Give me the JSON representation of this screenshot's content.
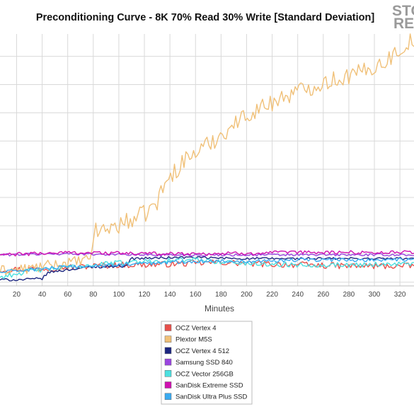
{
  "chart_data": {
    "type": "line",
    "title": "Preconditioning Curve - 8K 70% Read 30% Write [Standard Deviation]",
    "xlabel": "Minutes",
    "ylabel": "",
    "x_ticks": [
      20,
      40,
      60,
      80,
      100,
      120,
      140,
      160,
      180,
      200,
      220,
      240,
      260,
      280,
      300,
      320
    ],
    "xlim": [
      7,
      331
    ],
    "ylim": [
      -6,
      400
    ],
    "grid": true,
    "legend_position": "bottom-center",
    "series": [
      {
        "name": "OCZ Vertex 4",
        "color": "#e8504b",
        "points": [
          [
            7,
            20
          ],
          [
            40,
            22
          ],
          [
            60,
            24
          ],
          [
            80,
            26
          ],
          [
            100,
            28
          ],
          [
            120,
            28
          ],
          [
            150,
            30
          ],
          [
            180,
            32
          ],
          [
            200,
            30
          ],
          [
            240,
            28
          ],
          [
            280,
            26
          ],
          [
            300,
            26
          ],
          [
            331,
            26
          ]
        ],
        "jitter": 5
      },
      {
        "name": "Plextor M5S",
        "color": "#f0c078",
        "points": [
          [
            7,
            18
          ],
          [
            30,
            22
          ],
          [
            50,
            28
          ],
          [
            70,
            34
          ],
          [
            78,
            36
          ],
          [
            80,
            80
          ],
          [
            100,
            92
          ],
          [
            120,
            110
          ],
          [
            130,
            128
          ],
          [
            135,
            155
          ],
          [
            150,
            195
          ],
          [
            170,
            222
          ],
          [
            200,
            270
          ],
          [
            230,
            300
          ],
          [
            260,
            322
          ],
          [
            290,
            338
          ],
          [
            310,
            358
          ],
          [
            320,
            375
          ],
          [
            331,
            392
          ]
        ],
        "jitter": 9
      },
      {
        "name": "OCZ Vertex 4 512",
        "color": "#1c2680",
        "points": [
          [
            7,
            4
          ],
          [
            25,
            4
          ],
          [
            40,
            6
          ],
          [
            45,
            16
          ],
          [
            60,
            20
          ],
          [
            75,
            24
          ],
          [
            100,
            26
          ],
          [
            105,
            26
          ],
          [
            110,
            38
          ],
          [
            150,
            40
          ],
          [
            200,
            38
          ],
          [
            250,
            38
          ],
          [
            300,
            38
          ],
          [
            331,
            38
          ]
        ],
        "jitter": 2
      },
      {
        "name": "Samsung SSD 840",
        "color": "#9a45e0",
        "points": [
          [
            7,
            44
          ],
          [
            60,
            46
          ],
          [
            120,
            44
          ],
          [
            180,
            44
          ],
          [
            240,
            44
          ],
          [
            300,
            44
          ],
          [
            331,
            44
          ]
        ],
        "jitter": 2
      },
      {
        "name": "OCZ Vector 256GB",
        "color": "#4ce0e0",
        "points": [
          [
            7,
            8
          ],
          [
            30,
            18
          ],
          [
            60,
            24
          ],
          [
            90,
            30
          ],
          [
            120,
            34
          ],
          [
            160,
            36
          ],
          [
            200,
            30
          ],
          [
            240,
            28
          ],
          [
            280,
            28
          ],
          [
            331,
            30
          ]
        ],
        "jitter": 4
      },
      {
        "name": "SanDisk Extreme SSD",
        "color": "#d010b0",
        "points": [
          [
            7,
            44
          ],
          [
            60,
            48
          ],
          [
            120,
            46
          ],
          [
            180,
            46
          ],
          [
            240,
            48
          ],
          [
            300,
            48
          ],
          [
            331,
            48
          ]
        ],
        "jitter": 3
      },
      {
        "name": "SanDisk Ultra Plus SSD",
        "color": "#3aaaf0",
        "points": [
          [
            7,
            16
          ],
          [
            40,
            22
          ],
          [
            80,
            26
          ],
          [
            120,
            30
          ],
          [
            160,
            34
          ],
          [
            200,
            34
          ],
          [
            250,
            36
          ],
          [
            300,
            36
          ],
          [
            331,
            36
          ]
        ],
        "jitter": 3
      }
    ]
  },
  "logo": {
    "line1": "STO",
    "line2": "RE"
  }
}
